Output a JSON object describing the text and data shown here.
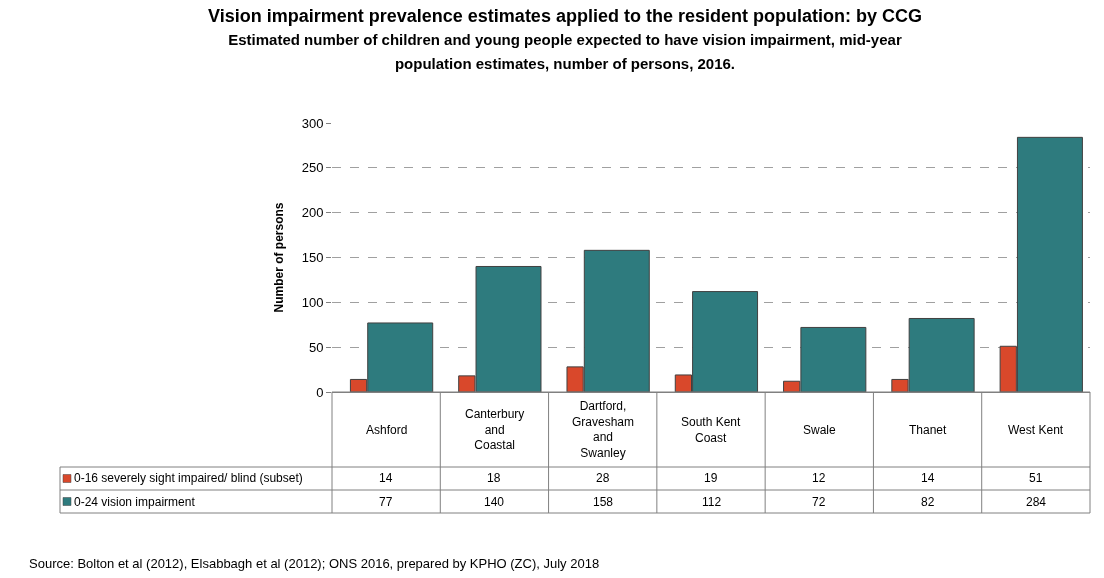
{
  "chart_data": {
    "type": "bar",
    "title": "Vision impairment prevalence estimates applied to the resident population: by CCG",
    "subtitle": "Estimated number of children and young people expected to have vision impairment, mid-year population estimates, number of persons, 2016.",
    "ylabel": "Number of persons",
    "categories": [
      "Ashford",
      "Canterbury and Coastal",
      "Dartford, Gravesham and Swanley",
      "South Kent Coast",
      "Swale",
      "Thanet",
      "West Kent"
    ],
    "series": [
      {
        "name": "0-16 severely sight impaired/ blind (subset)",
        "color": "#d9482b",
        "values": [
          14,
          18,
          28,
          19,
          12,
          14,
          51
        ]
      },
      {
        "name": "0-24 vision impairment",
        "color": "#2e7b7e",
        "values": [
          77,
          140,
          158,
          112,
          72,
          82,
          284
        ]
      }
    ],
    "ylim": [
      0,
      300
    ],
    "yticks": [
      0,
      50,
      100,
      150,
      200,
      250,
      300
    ],
    "grid": "y",
    "legend": "bottom",
    "data_labels": true,
    "annotations": [
      "Source: Bolton et al (2012), Elsabbagh et al (2012); ONS 2016, prepared by KPHO (ZC), July 2018"
    ]
  }
}
